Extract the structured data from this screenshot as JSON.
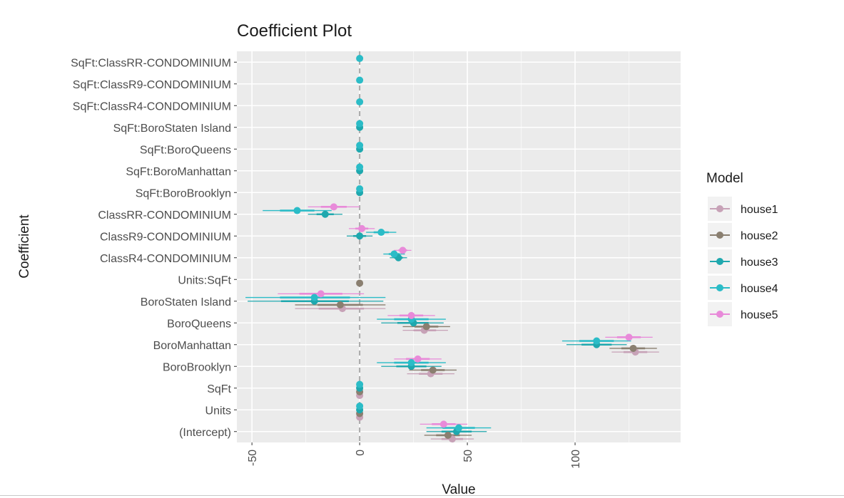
{
  "chart_data": {
    "type": "scatter",
    "title": "Coefficient Plot",
    "xlabel": "Value",
    "ylabel": "Coefficient",
    "xlim": [
      -57,
      149
    ],
    "xticks": [
      -50,
      0,
      50,
      100
    ],
    "grid": true,
    "legend": {
      "title": "Model",
      "position": "right"
    },
    "reference_line": 0,
    "coefficients": [
      "(Intercept)",
      "Units",
      "SqFt",
      "BoroBrooklyn",
      "BoroManhattan",
      "BoroQueens",
      "BoroStaten Island",
      "Units:SqFt",
      "ClassR4-CONDOMINIUM",
      "ClassR9-CONDOMINIUM",
      "ClassRR-CONDOMINIUM",
      "SqFt:BoroBrooklyn",
      "SqFt:BoroManhattan",
      "SqFt:BoroQueens",
      "SqFt:BoroStaten Island",
      "SqFt:ClassR4-CONDOMINIUM",
      "SqFt:ClassR9-CONDOMINIUM",
      "SqFt:ClassRR-CONDOMINIUM"
    ],
    "series": [
      {
        "name": "house1",
        "color": "#c7a2b7",
        "points": [
          {
            "coef": "(Intercept)",
            "value": 43,
            "low": 33,
            "high": 53
          },
          {
            "coef": "Units",
            "value": 0,
            "low": -1,
            "high": 1
          },
          {
            "coef": "SqFt",
            "value": 0,
            "low": -1,
            "high": 1
          },
          {
            "coef": "BoroBrooklyn",
            "value": 33,
            "low": 22,
            "high": 44
          },
          {
            "coef": "BoroManhattan",
            "value": 128,
            "low": 117,
            "high": 139
          },
          {
            "coef": "BoroQueens",
            "value": 30,
            "low": 20,
            "high": 41
          },
          {
            "coef": "BoroStaten Island",
            "value": -8,
            "low": -30,
            "high": 12
          }
        ]
      },
      {
        "name": "house2",
        "color": "#8a7f70",
        "points": [
          {
            "coef": "(Intercept)",
            "value": 41,
            "low": 30,
            "high": 52
          },
          {
            "coef": "Units",
            "value": 0,
            "low": -1,
            "high": 1
          },
          {
            "coef": "SqFt",
            "value": 0,
            "low": -1,
            "high": 1
          },
          {
            "coef": "BoroBrooklyn",
            "value": 34,
            "low": 23,
            "high": 45
          },
          {
            "coef": "BoroManhattan",
            "value": 127,
            "low": 116,
            "high": 138
          },
          {
            "coef": "BoroQueens",
            "value": 31,
            "low": 20,
            "high": 42
          },
          {
            "coef": "BoroStaten Island",
            "value": -9,
            "low": -30,
            "high": 12
          },
          {
            "coef": "Units:SqFt",
            "value": 0,
            "low": -1,
            "high": 1
          }
        ]
      },
      {
        "name": "house3",
        "color": "#1fa8ae",
        "points": [
          {
            "coef": "(Intercept)",
            "value": 45,
            "low": 31,
            "high": 59
          },
          {
            "coef": "Units",
            "value": 0,
            "low": -1,
            "high": 1
          },
          {
            "coef": "SqFt",
            "value": 0,
            "low": -1,
            "high": 1
          },
          {
            "coef": "BoroBrooklyn",
            "value": 24,
            "low": 10,
            "high": 38
          },
          {
            "coef": "BoroManhattan",
            "value": 110,
            "low": 96,
            "high": 124
          },
          {
            "coef": "BoroQueens",
            "value": 25,
            "low": 10,
            "high": 39
          },
          {
            "coef": "BoroStaten Island",
            "value": -21,
            "low": -52,
            "high": 11
          },
          {
            "coef": "ClassR4-CONDOMINIUM",
            "value": 18,
            "low": 14,
            "high": 22
          },
          {
            "coef": "ClassR9-CONDOMINIUM",
            "value": 0,
            "low": -6,
            "high": 6
          },
          {
            "coef": "ClassRR-CONDOMINIUM",
            "value": -16,
            "low": -24,
            "high": -8
          },
          {
            "coef": "SqFt:BoroBrooklyn",
            "value": 0,
            "low": -1,
            "high": 1
          },
          {
            "coef": "SqFt:BoroManhattan",
            "value": 0,
            "low": -1,
            "high": 1
          },
          {
            "coef": "SqFt:BoroQueens",
            "value": 0,
            "low": -1,
            "high": 1
          },
          {
            "coef": "SqFt:BoroStaten Island",
            "value": 0,
            "low": -1,
            "high": 1
          }
        ]
      },
      {
        "name": "house4",
        "color": "#2bbcc7",
        "points": [
          {
            "coef": "(Intercept)",
            "value": 46,
            "low": 31,
            "high": 61
          },
          {
            "coef": "Units",
            "value": 0,
            "low": -1,
            "high": 1
          },
          {
            "coef": "SqFt",
            "value": 0,
            "low": -1,
            "high": 1
          },
          {
            "coef": "BoroBrooklyn",
            "value": 24,
            "low": 8,
            "high": 40
          },
          {
            "coef": "BoroManhattan",
            "value": 110,
            "low": 94,
            "high": 126
          },
          {
            "coef": "BoroQueens",
            "value": 24,
            "low": 8,
            "high": 40
          },
          {
            "coef": "BoroStaten Island",
            "value": -21,
            "low": -53,
            "high": 12
          },
          {
            "coef": "ClassR4-CONDOMINIUM",
            "value": 16,
            "low": 11,
            "high": 21
          },
          {
            "coef": "ClassR9-CONDOMINIUM",
            "value": 10,
            "low": 3,
            "high": 17
          },
          {
            "coef": "ClassRR-CONDOMINIUM",
            "value": -29,
            "low": -45,
            "high": -13
          },
          {
            "coef": "SqFt:BoroBrooklyn",
            "value": 0,
            "low": -1,
            "high": 1
          },
          {
            "coef": "SqFt:BoroManhattan",
            "value": 0,
            "low": -1,
            "high": 1
          },
          {
            "coef": "SqFt:BoroQueens",
            "value": 0,
            "low": -1,
            "high": 1
          },
          {
            "coef": "SqFt:BoroStaten Island",
            "value": 0,
            "low": -1,
            "high": 1
          },
          {
            "coef": "SqFt:ClassR4-CONDOMINIUM",
            "value": 0,
            "low": -1,
            "high": 1
          },
          {
            "coef": "SqFt:ClassR9-CONDOMINIUM",
            "value": 0,
            "low": -1,
            "high": 1
          },
          {
            "coef": "SqFt:ClassRR-CONDOMINIUM",
            "value": 0,
            "low": -1,
            "high": 1
          }
        ]
      },
      {
        "name": "house5",
        "color": "#e88ad9",
        "points": [
          {
            "coef": "(Intercept)",
            "value": 39,
            "low": 28,
            "high": 50
          },
          {
            "coef": "BoroBrooklyn",
            "value": 27,
            "low": 16,
            "high": 38
          },
          {
            "coef": "BoroManhattan",
            "value": 125,
            "low": 114,
            "high": 136
          },
          {
            "coef": "BoroQueens",
            "value": 24,
            "low": 13,
            "high": 35
          },
          {
            "coef": "BoroStaten Island",
            "value": -18,
            "low": -38,
            "high": 2
          },
          {
            "coef": "ClassR4-CONDOMINIUM",
            "value": 20,
            "low": 16,
            "high": 24
          },
          {
            "coef": "ClassR9-CONDOMINIUM",
            "value": 1,
            "low": -5,
            "high": 7
          },
          {
            "coef": "ClassRR-CONDOMINIUM",
            "value": -12,
            "low": -24,
            "high": 0
          }
        ]
      }
    ]
  }
}
